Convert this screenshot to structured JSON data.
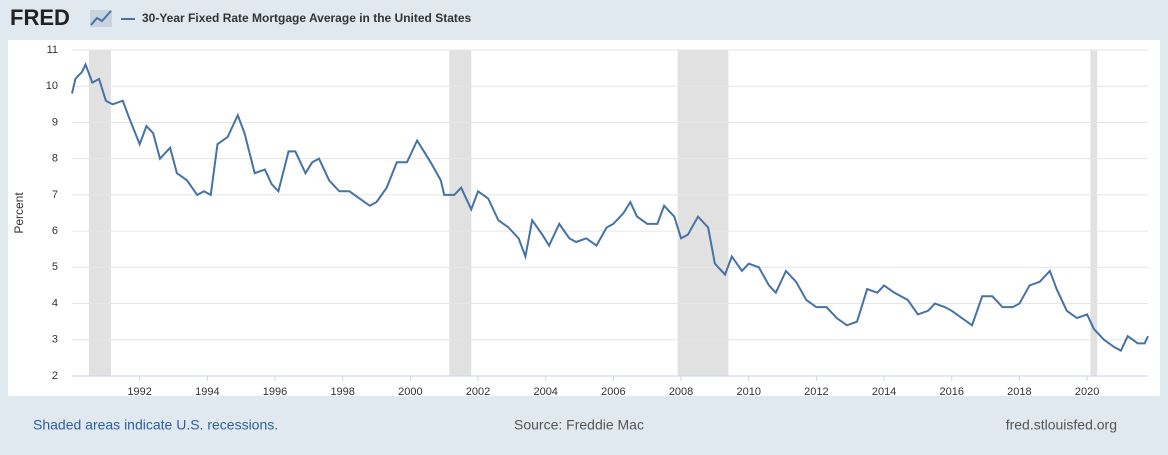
{
  "logo": "FRED",
  "footer": {
    "note": "Shaded areas indicate U.S. recessions.",
    "source": "Source: Freddie Mac",
    "site": "fred.stlouisfed.org"
  },
  "chart_data": {
    "type": "line",
    "y_label": "Percent",
    "xlim": [
      1990,
      2021.8
    ],
    "xticks": [
      1992,
      1994,
      1996,
      1998,
      2000,
      2002,
      2004,
      2006,
      2008,
      2010,
      2012,
      2014,
      2016,
      2018,
      2020
    ],
    "ylim": [
      2,
      11
    ],
    "yticks": [
      2,
      3,
      4,
      5,
      6,
      7,
      8,
      9,
      10,
      11
    ],
    "grid": true,
    "recessions": [
      [
        1990.5,
        1991.15
      ],
      [
        2001.15,
        2001.8
      ],
      [
        2007.9,
        2009.4
      ],
      [
        2020.1,
        2020.3
      ]
    ],
    "recession_color": "#e1e1e1",
    "x": [
      1990.0,
      1990.1,
      1990.3,
      1990.4,
      1990.6,
      1990.8,
      1991.0,
      1991.2,
      1991.5,
      1991.7,
      1992.0,
      1992.2,
      1992.4,
      1992.6,
      1992.9,
      1993.1,
      1993.4,
      1993.7,
      1993.9,
      1994.1,
      1994.3,
      1994.6,
      1994.9,
      1995.1,
      1995.4,
      1995.7,
      1995.9,
      1996.1,
      1996.4,
      1996.6,
      1996.9,
      1997.1,
      1997.3,
      1997.6,
      1997.9,
      1998.2,
      1998.5,
      1998.8,
      1999.0,
      1999.3,
      1999.6,
      1999.9,
      2000.2,
      2000.4,
      2000.6,
      2000.9,
      2001.0,
      2001.3,
      2001.5,
      2001.8,
      2002.0,
      2002.3,
      2002.6,
      2002.9,
      2003.2,
      2003.4,
      2003.6,
      2003.9,
      2004.1,
      2004.4,
      2004.7,
      2004.9,
      2005.2,
      2005.5,
      2005.8,
      2006.0,
      2006.3,
      2006.5,
      2006.7,
      2007.0,
      2007.3,
      2007.5,
      2007.8,
      2008.0,
      2008.2,
      2008.5,
      2008.8,
      2009.0,
      2009.3,
      2009.5,
      2009.8,
      2010.0,
      2010.3,
      2010.6,
      2010.8,
      2011.1,
      2011.4,
      2011.7,
      2012.0,
      2012.3,
      2012.6,
      2012.9,
      2013.2,
      2013.5,
      2013.8,
      2014.0,
      2014.3,
      2014.7,
      2015.0,
      2015.3,
      2015.5,
      2015.8,
      2016.0,
      2016.3,
      2016.6,
      2016.9,
      2017.2,
      2017.5,
      2017.8,
      2018.0,
      2018.3,
      2018.6,
      2018.9,
      2019.1,
      2019.4,
      2019.7,
      2020.0,
      2020.2,
      2020.5,
      2020.8,
      2021.0,
      2021.2,
      2021.5,
      2021.7,
      2021.8
    ],
    "series": [
      {
        "name": "30-Year Fixed Rate Mortgage Average in the United States",
        "color": "#4572a7",
        "values": [
          9.8,
          10.2,
          10.4,
          10.6,
          10.1,
          10.2,
          9.6,
          9.5,
          9.6,
          9.1,
          8.4,
          8.9,
          8.7,
          8.0,
          8.3,
          7.6,
          7.4,
          7.0,
          7.1,
          7.0,
          8.4,
          8.6,
          9.2,
          8.7,
          7.6,
          7.7,
          7.3,
          7.1,
          8.2,
          8.2,
          7.6,
          7.9,
          8.0,
          7.4,
          7.1,
          7.1,
          6.9,
          6.7,
          6.8,
          7.2,
          7.9,
          7.9,
          8.5,
          8.2,
          7.9,
          7.4,
          7.0,
          7.0,
          7.2,
          6.6,
          7.1,
          6.9,
          6.3,
          6.1,
          5.8,
          5.3,
          6.3,
          5.9,
          5.6,
          6.2,
          5.8,
          5.7,
          5.8,
          5.6,
          6.1,
          6.2,
          6.5,
          6.8,
          6.4,
          6.2,
          6.2,
          6.7,
          6.4,
          5.8,
          5.9,
          6.4,
          6.1,
          5.1,
          4.8,
          5.3,
          4.9,
          5.1,
          5.0,
          4.5,
          4.3,
          4.9,
          4.6,
          4.1,
          3.9,
          3.9,
          3.6,
          3.4,
          3.5,
          4.4,
          4.3,
          4.5,
          4.3,
          4.1,
          3.7,
          3.8,
          4.0,
          3.9,
          3.8,
          3.6,
          3.4,
          4.2,
          4.2,
          3.9,
          3.9,
          4.0,
          4.5,
          4.6,
          4.9,
          4.4,
          3.8,
          3.6,
          3.7,
          3.3,
          3.0,
          2.8,
          2.7,
          3.1,
          2.9,
          2.9,
          3.1
        ]
      }
    ]
  }
}
